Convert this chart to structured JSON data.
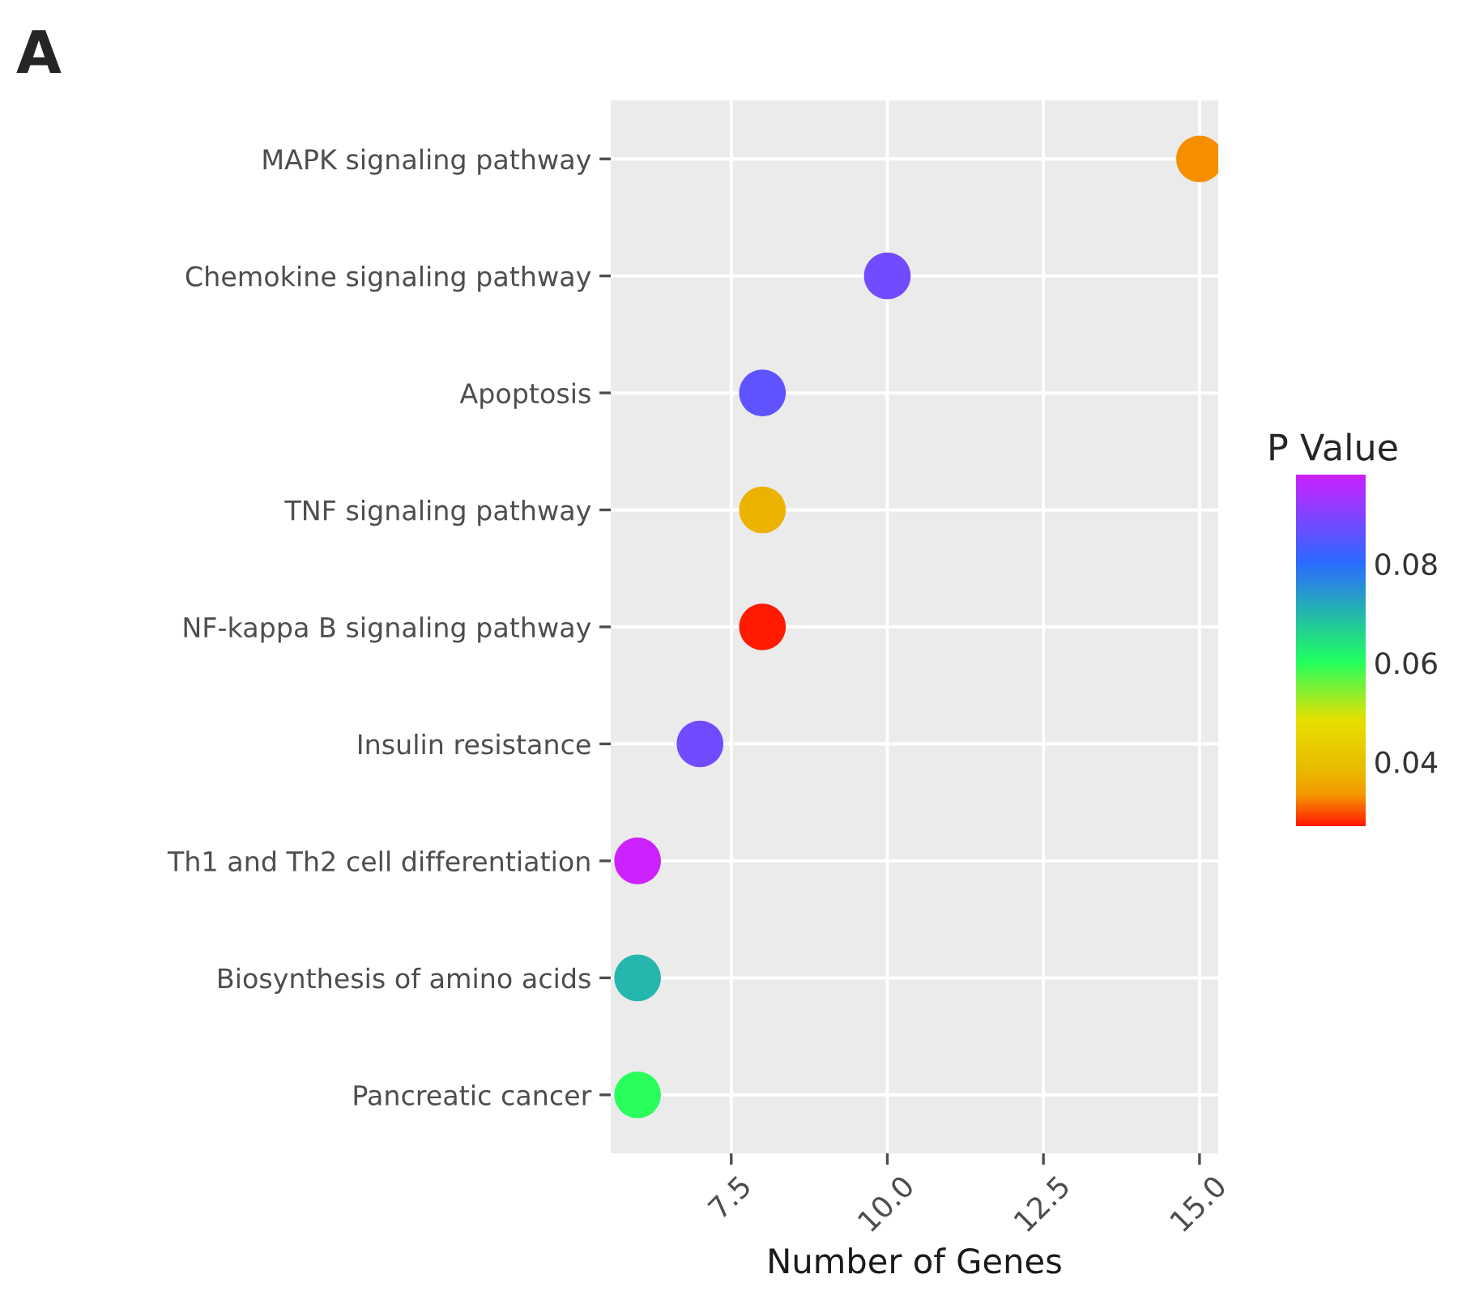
{
  "chart_data": {
    "type": "scatter",
    "title": "A",
    "xlabel": "Number of Genes",
    "clabel": "P Value",
    "categories": [
      "MAPK signaling pathway",
      "Chemokine signaling pathway",
      "Apoptosis",
      "TNF signaling pathway",
      "NF-kappa B signaling pathway",
      "Insulin resistance",
      "Th1 and Th2 cell differentiation",
      "Biosynthesis of amino acids",
      "Pancreatic cancer"
    ],
    "orientation": "horizontal",
    "values": [
      15,
      10,
      8,
      8,
      8,
      7,
      6,
      6,
      6
    ],
    "cvalues": [
      0.033,
      0.088,
      0.086,
      0.037,
      0.027,
      0.088,
      0.098,
      0.07,
      0.06
    ],
    "xlim": [
      5.57,
      15.3
    ],
    "xticks": [
      7.5,
      {
        "value": 10,
        "label": "10.0"
      },
      12.5,
      {
        "value": 15,
        "label": "15.0"
      }
    ],
    "clim": [
      0.027,
      0.098
    ],
    "cticks": [
      0.04,
      0.06,
      0.08
    ],
    "marker": "circle",
    "grid": true,
    "legend": false
  }
}
